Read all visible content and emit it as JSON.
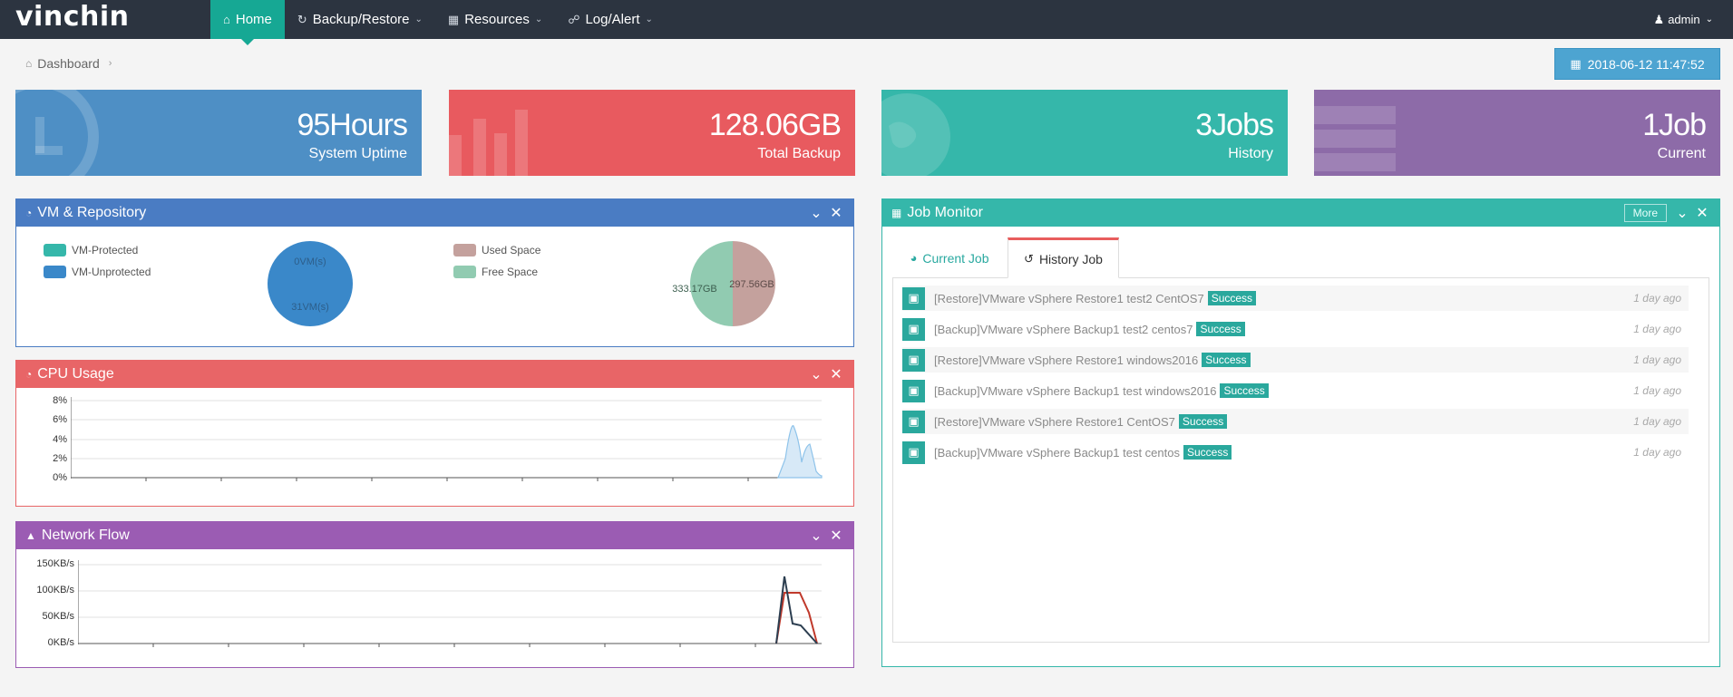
{
  "app": {
    "logo": "vinchin"
  },
  "nav": [
    {
      "label": "Home",
      "icon": "home-icon",
      "active": true
    },
    {
      "label": "Backup/Restore",
      "icon": "refresh-icon"
    },
    {
      "label": "Resources",
      "icon": "grid-icon"
    },
    {
      "label": "Log/Alert",
      "icon": "bell-icon"
    }
  ],
  "user": {
    "name": "admin"
  },
  "breadcrumb": {
    "label": "Dashboard"
  },
  "datetime": "2018-06-12 11:47:52",
  "tiles": [
    {
      "value": "95Hours",
      "label": "System Uptime",
      "color": "#4e8fc5",
      "icon": "clock-icon"
    },
    {
      "value": "128.06GB",
      "label": "Total Backup",
      "color": "#e85a5f",
      "icon": "bar-chart-icon"
    },
    {
      "value": "3Jobs",
      "label": "History",
      "color": "#35b7aa",
      "icon": "globe-icon"
    },
    {
      "value": "1Job",
      "label": "Current",
      "color": "#8d6ba8",
      "icon": "server-icon"
    }
  ],
  "vm_panel": {
    "title": "VM & Repository",
    "color": "#4a7cc3",
    "legend1": [
      {
        "label": "VM-Protected",
        "color": "#35b7aa"
      },
      {
        "label": "VM-Unprotected",
        "color": "#3a88c9"
      }
    ],
    "pie1": {
      "protected_label": "0VM(s)",
      "unprotected_label": "31VM(s)"
    },
    "legend2": [
      {
        "label": "Used Space",
        "color": "#c4a19d"
      },
      {
        "label": "Free Space",
        "color": "#91cbb1"
      }
    ],
    "pie2": {
      "used_label": "297.56GB",
      "free_label": "333.17GB"
    }
  },
  "cpu_panel": {
    "title": "CPU Usage",
    "color": "#e86567",
    "yticks": [
      "8%",
      "6%",
      "4%",
      "2%",
      "0%"
    ]
  },
  "net_panel": {
    "title": "Network Flow",
    "color": "#9b5cb3",
    "yticks": [
      "150KB/s",
      "100KB/s",
      "50KB/s",
      "0KB/s"
    ]
  },
  "job_panel": {
    "title": "Job Monitor",
    "color": "#35b7aa",
    "more": "More",
    "tabs": [
      {
        "label": "Current Job",
        "icon": "dashboard-icon"
      },
      {
        "label": "History Job",
        "icon": "history-icon"
      }
    ],
    "jobs": [
      {
        "text": "[Restore]VMware vSphere Restore1 test2 CentOS7",
        "status": "Success",
        "time": "1 day ago"
      },
      {
        "text": "[Backup]VMware vSphere Backup1 test2 centos7",
        "status": "Success",
        "time": "1 day ago"
      },
      {
        "text": "[Restore]VMware vSphere Restore1 windows2016",
        "status": "Success",
        "time": "1 day ago"
      },
      {
        "text": "[Backup]VMware vSphere Backup1 test windows2016",
        "status": "Success",
        "time": "1 day ago"
      },
      {
        "text": "[Restore]VMware vSphere Restore1 CentOS7",
        "status": "Success",
        "time": "1 day ago"
      },
      {
        "text": "[Backup]VMware vSphere Backup1 test centos",
        "status": "Success",
        "time": "1 day ago"
      }
    ]
  }
}
